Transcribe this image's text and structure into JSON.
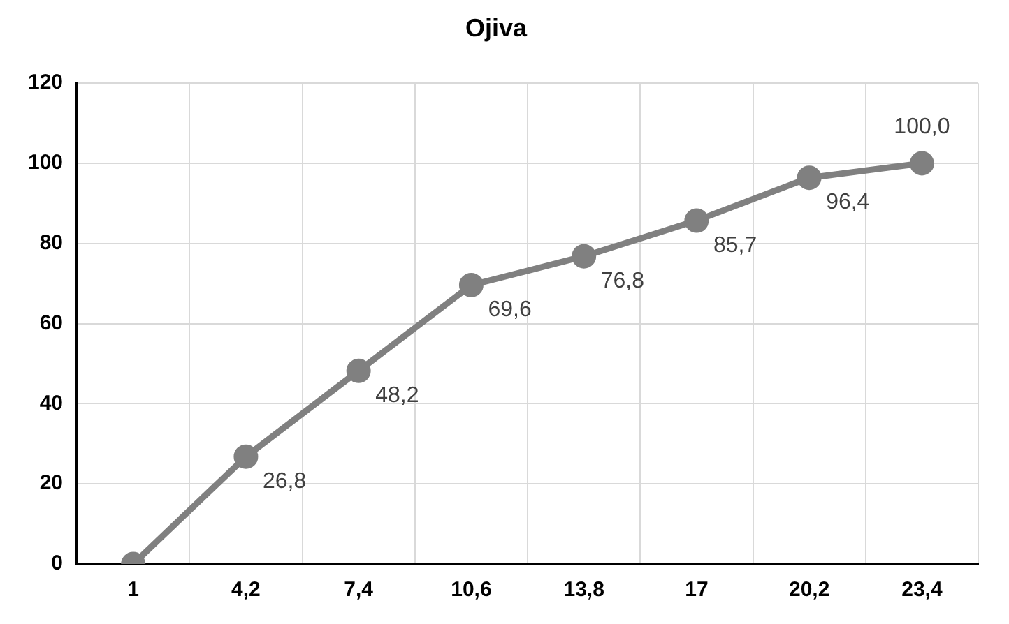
{
  "chart_data": {
    "type": "line",
    "title": "Ojiva",
    "categories": [
      "1",
      "4,2",
      "7,4",
      "10,6",
      "13,8",
      "17",
      "20,2",
      "23,4"
    ],
    "series": [
      {
        "color": "#808080",
        "values": [
          0,
          26.8,
          48.2,
          69.6,
          76.8,
          85.7,
          96.4,
          100.0
        ],
        "value_labels": [
          null,
          "26,8",
          "48,2",
          "69,6",
          "76,8",
          "85,7",
          "96,4",
          "100,0"
        ]
      }
    ],
    "ylim": [
      0,
      120
    ],
    "yticks": [
      0,
      20,
      40,
      60,
      80,
      100,
      120
    ],
    "grid": true,
    "legend": false,
    "marker": "circle",
    "line_style": "solid"
  }
}
